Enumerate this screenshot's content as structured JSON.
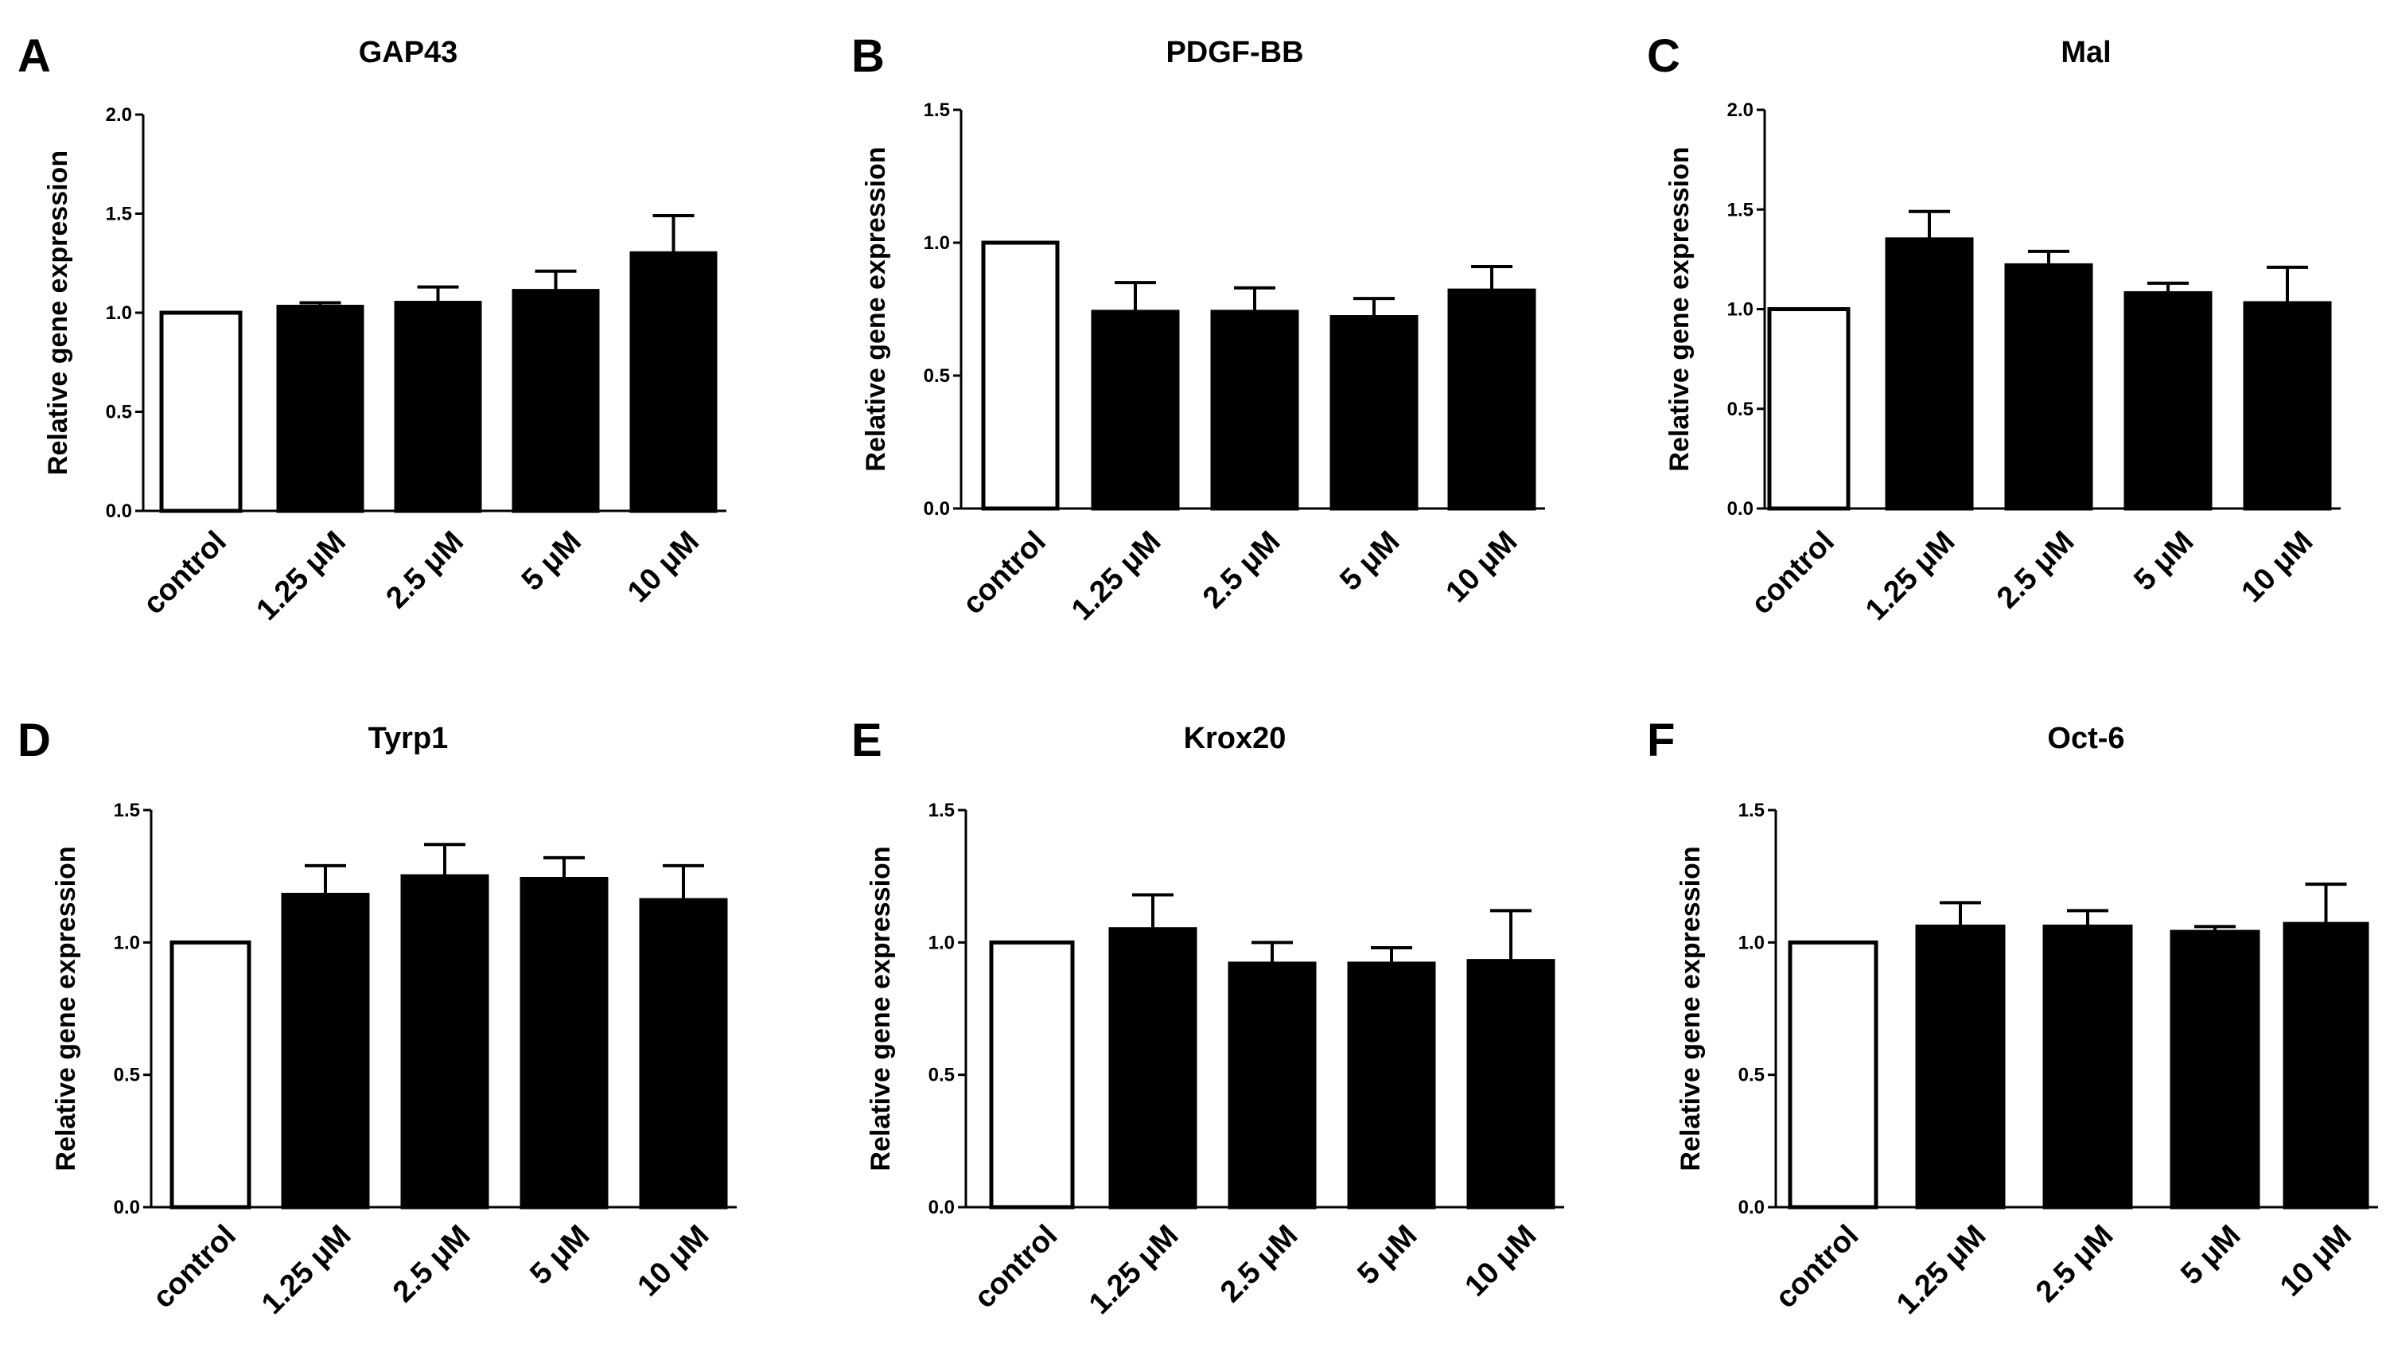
{
  "chart_data": [
    {
      "type": "bar",
      "panel": "A",
      "title": "GAP43",
      "xlabel": "",
      "ylabel": "Relative gene expression",
      "ylim": [
        0,
        2.0
      ],
      "yticks": [
        "0.0",
        "0.5",
        "1.0",
        "1.5",
        "2.0"
      ],
      "categories": [
        "control",
        "1.25 μM",
        "2.5 μM",
        "5 μM",
        "10 μM"
      ],
      "values": [
        1.0,
        1.03,
        1.05,
        1.11,
        1.3
      ],
      "errors": [
        0,
        0.02,
        0.08,
        0.1,
        0.19
      ],
      "bar_fill": [
        "#ffffff",
        "#000000",
        "#000000",
        "#000000",
        "#000000"
      ]
    },
    {
      "type": "bar",
      "panel": "B",
      "title": "PDGF-BB",
      "xlabel": "",
      "ylabel": "Relative gene expression",
      "ylim": [
        0,
        1.5
      ],
      "yticks": [
        "0.0",
        "0.5",
        "1.0",
        "1.5"
      ],
      "categories": [
        "control",
        "1.25 μM",
        "2.5 μM",
        "5 μM",
        "10 μM"
      ],
      "values": [
        1.0,
        0.74,
        0.74,
        0.72,
        0.82
      ],
      "errors": [
        0,
        0.11,
        0.09,
        0.07,
        0.09
      ],
      "bar_fill": [
        "#ffffff",
        "#000000",
        "#000000",
        "#000000",
        "#000000"
      ]
    },
    {
      "type": "bar",
      "panel": "C",
      "title": "Mal",
      "xlabel": "",
      "ylabel": "Relative gene expression",
      "ylim": [
        0,
        2.0
      ],
      "yticks": [
        "0.0",
        "0.5",
        "1.0",
        "1.5",
        "2.0"
      ],
      "categories": [
        "control",
        "1.25 μM",
        "2.5 μM",
        "5 μM",
        "10 μM"
      ],
      "values": [
        1.0,
        1.35,
        1.22,
        1.08,
        1.03
      ],
      "errors": [
        0,
        0.14,
        0.07,
        0.05,
        0.18
      ],
      "bar_fill": [
        "#ffffff",
        "#000000",
        "#000000",
        "#000000",
        "#000000"
      ]
    },
    {
      "type": "bar",
      "panel": "D",
      "title": "Tyrp1",
      "xlabel": "",
      "ylabel": "Relative gene expression",
      "ylim": [
        0,
        1.5
      ],
      "yticks": [
        "0.0",
        "0.5",
        "1.0",
        "1.5"
      ],
      "categories": [
        "control",
        "1.25 μM",
        "2.5 μM",
        "5 μM",
        "10 μM"
      ],
      "values": [
        1.0,
        1.18,
        1.25,
        1.24,
        1.16
      ],
      "errors": [
        0,
        0.11,
        0.12,
        0.08,
        0.13
      ],
      "bar_fill": [
        "#ffffff",
        "#000000",
        "#000000",
        "#000000",
        "#000000"
      ]
    },
    {
      "type": "bar",
      "panel": "E",
      "title": "Krox20",
      "xlabel": "",
      "ylabel": "Relative gene expression",
      "ylim": [
        0,
        1.5
      ],
      "yticks": [
        "0.0",
        "0.5",
        "1.0",
        "1.5"
      ],
      "categories": [
        "control",
        "1.25 μM",
        "2.5 μM",
        "5 μM",
        "10 μM"
      ],
      "values": [
        1.0,
        1.05,
        0.92,
        0.92,
        0.93
      ],
      "errors": [
        0,
        0.13,
        0.08,
        0.06,
        0.19
      ],
      "bar_fill": [
        "#ffffff",
        "#000000",
        "#000000",
        "#000000",
        "#000000"
      ]
    },
    {
      "type": "bar",
      "panel": "F",
      "title": "Oct-6",
      "xlabel": "",
      "ylabel": "Relative gene expression",
      "ylim": [
        0,
        1.5
      ],
      "yticks": [
        "0.0",
        "0.5",
        "1.0",
        "1.5"
      ],
      "categories": [
        "control",
        "1.25 μM",
        "2.5 μM",
        "5 μM",
        "10 μM"
      ],
      "values": [
        1.0,
        1.06,
        1.06,
        1.04,
        1.07
      ],
      "errors": [
        0,
        0.09,
        0.06,
        0.02,
        0.15
      ],
      "bar_fill": [
        "#ffffff",
        "#000000",
        "#000000",
        "#000000",
        "#000000"
      ]
    }
  ]
}
